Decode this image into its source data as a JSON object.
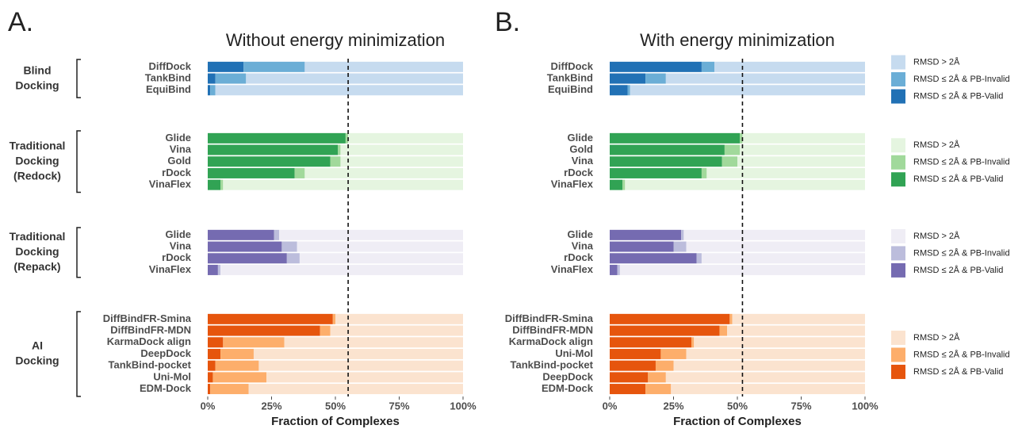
{
  "chart_data": [
    {
      "type": "bar",
      "panel": "A.",
      "title": "Without energy minimization",
      "xlabel": "Fraction of Complexes",
      "xlim": [
        0,
        100
      ],
      "xticks": [
        {
          "value": 0,
          "label": "0%"
        },
        {
          "value": 25,
          "label": "25%"
        },
        {
          "value": 50,
          "label": "50%"
        },
        {
          "value": 75,
          "label": "75%"
        },
        {
          "value": 100,
          "label": "100%"
        }
      ],
      "reference_line": 55,
      "groups": [
        {
          "label": [
            "Blind",
            "Docking"
          ],
          "categories": [
            "DiffDock",
            "TankBind",
            "EquiBind"
          ],
          "series": [
            {
              "color": "#c6dbef",
              "values": [
                62,
                85,
                97
              ]
            },
            {
              "color": "#6baed6",
              "values": [
                24,
                12,
                2
              ]
            },
            {
              "color": "#2171b5",
              "values": [
                14,
                3,
                1
              ]
            }
          ]
        },
        {
          "label": [
            "Traditional",
            "Docking",
            "(Redock)"
          ],
          "categories": [
            "Glide",
            "Vina",
            "Gold",
            "rDock",
            "VinaFlex"
          ],
          "series": [
            {
              "color": "#e5f5e0",
              "values": [
                45,
                48,
                48,
                62,
                94
              ]
            },
            {
              "color": "#a1d99b",
              "values": [
                1,
                1,
                4,
                4,
                1
              ]
            },
            {
              "color": "#31a354",
              "values": [
                54,
                51,
                48,
                34,
                5
              ]
            }
          ]
        },
        {
          "label": [
            "Traditional",
            "Docking",
            "(Repack)"
          ],
          "categories": [
            "Glide",
            "Vina",
            "rDock",
            "VinaFlex"
          ],
          "series": [
            {
              "color": "#efedf5",
              "values": [
                72,
                65,
                64,
                95
              ]
            },
            {
              "color": "#bcbddc",
              "values": [
                2,
                6,
                5,
                1
              ]
            },
            {
              "color": "#756bb1",
              "values": [
                26,
                29,
                31,
                4
              ]
            }
          ]
        },
        {
          "label": [
            "AI",
            "Docking"
          ],
          "categories": [
            "DiffBindFR-Smina",
            "DiffBindFR-MDN",
            "KarmaDock align",
            "DeepDock",
            "TankBind-pocket",
            "Uni-Mol",
            "EDM-Dock"
          ],
          "series": [
            {
              "color": "#fbe3cf",
              "values": [
                50,
                52,
                70,
                82,
                80,
                77,
                84
              ]
            },
            {
              "color": "#fdae6b",
              "values": [
                1,
                4,
                24,
                13,
                17,
                21,
                15
              ]
            },
            {
              "color": "#e6550d",
              "values": [
                49,
                44,
                6,
                5,
                3,
                2,
                1
              ]
            }
          ]
        }
      ]
    },
    {
      "type": "bar",
      "panel": "B.",
      "title": "With energy minimization",
      "xlabel": "Fraction of Complexes",
      "xlim": [
        0,
        100
      ],
      "xticks": [
        {
          "value": 0,
          "label": "0%"
        },
        {
          "value": 25,
          "label": "25%"
        },
        {
          "value": 50,
          "label": "50%"
        },
        {
          "value": 75,
          "label": "75%"
        },
        {
          "value": 100,
          "label": "100%"
        }
      ],
      "reference_line": 52,
      "groups": [
        {
          "categories": [
            "DiffDock",
            "TankBind",
            "EquiBind"
          ],
          "series": [
            {
              "name": "RMSD > 2Å",
              "color": "#c6dbef",
              "values": [
                59,
                78,
                92
              ]
            },
            {
              "name": "RMSD ≤ 2Å & PB-Invalid",
              "color": "#6baed6",
              "values": [
                5,
                8,
                1
              ]
            },
            {
              "name": "RMSD ≤ 2Å & PB-Valid",
              "color": "#2171b5",
              "values": [
                36,
                14,
                7
              ]
            }
          ]
        },
        {
          "categories": [
            "Glide",
            "Gold",
            "Vina",
            "rDock",
            "VinaFlex"
          ],
          "series": [
            {
              "name": "RMSD > 2Å",
              "color": "#e5f5e0",
              "values": [
                48,
                49,
                50,
                62,
                94
              ]
            },
            {
              "name": "RMSD ≤ 2Å & PB-Invalid",
              "color": "#a1d99b",
              "values": [
                1,
                6,
                6,
                2,
                1
              ]
            },
            {
              "name": "RMSD ≤ 2Å & PB-Valid",
              "color": "#31a354",
              "values": [
                51,
                45,
                44,
                36,
                5
              ]
            }
          ]
        },
        {
          "categories": [
            "Glide",
            "Vina",
            "rDock",
            "VinaFlex"
          ],
          "series": [
            {
              "name": "RMSD > 2Å",
              "color": "#efedf5",
              "values": [
                71,
                70,
                64,
                96
              ]
            },
            {
              "name": "RMSD ≤ 2Å & PB-Invalid",
              "color": "#bcbddc",
              "values": [
                1,
                5,
                2,
                1
              ]
            },
            {
              "name": "RMSD ≤ 2Å & PB-Valid",
              "color": "#756bb1",
              "values": [
                28,
                25,
                34,
                3
              ]
            }
          ]
        },
        {
          "categories": [
            "DiffBindFR-Smina",
            "DiffBindFR-MDN",
            "KarmaDock align",
            "Uni-Mol",
            "TankBind-pocket",
            "DeepDock",
            "EDM-Dock"
          ],
          "series": [
            {
              "name": "RMSD > 2Å",
              "color": "#fbe3cf",
              "values": [
                52,
                54,
                67,
                70,
                75,
                78,
                76
              ]
            },
            {
              "name": "RMSD ≤ 2Å & PB-Invalid",
              "color": "#fdae6b",
              "values": [
                1,
                3,
                1,
                10,
                7,
                7,
                10
              ]
            },
            {
              "name": "RMSD ≤ 2Å & PB-Valid",
              "color": "#e6550d",
              "values": [
                47,
                43,
                32,
                20,
                18,
                15,
                14
              ]
            }
          ]
        }
      ]
    }
  ]
}
